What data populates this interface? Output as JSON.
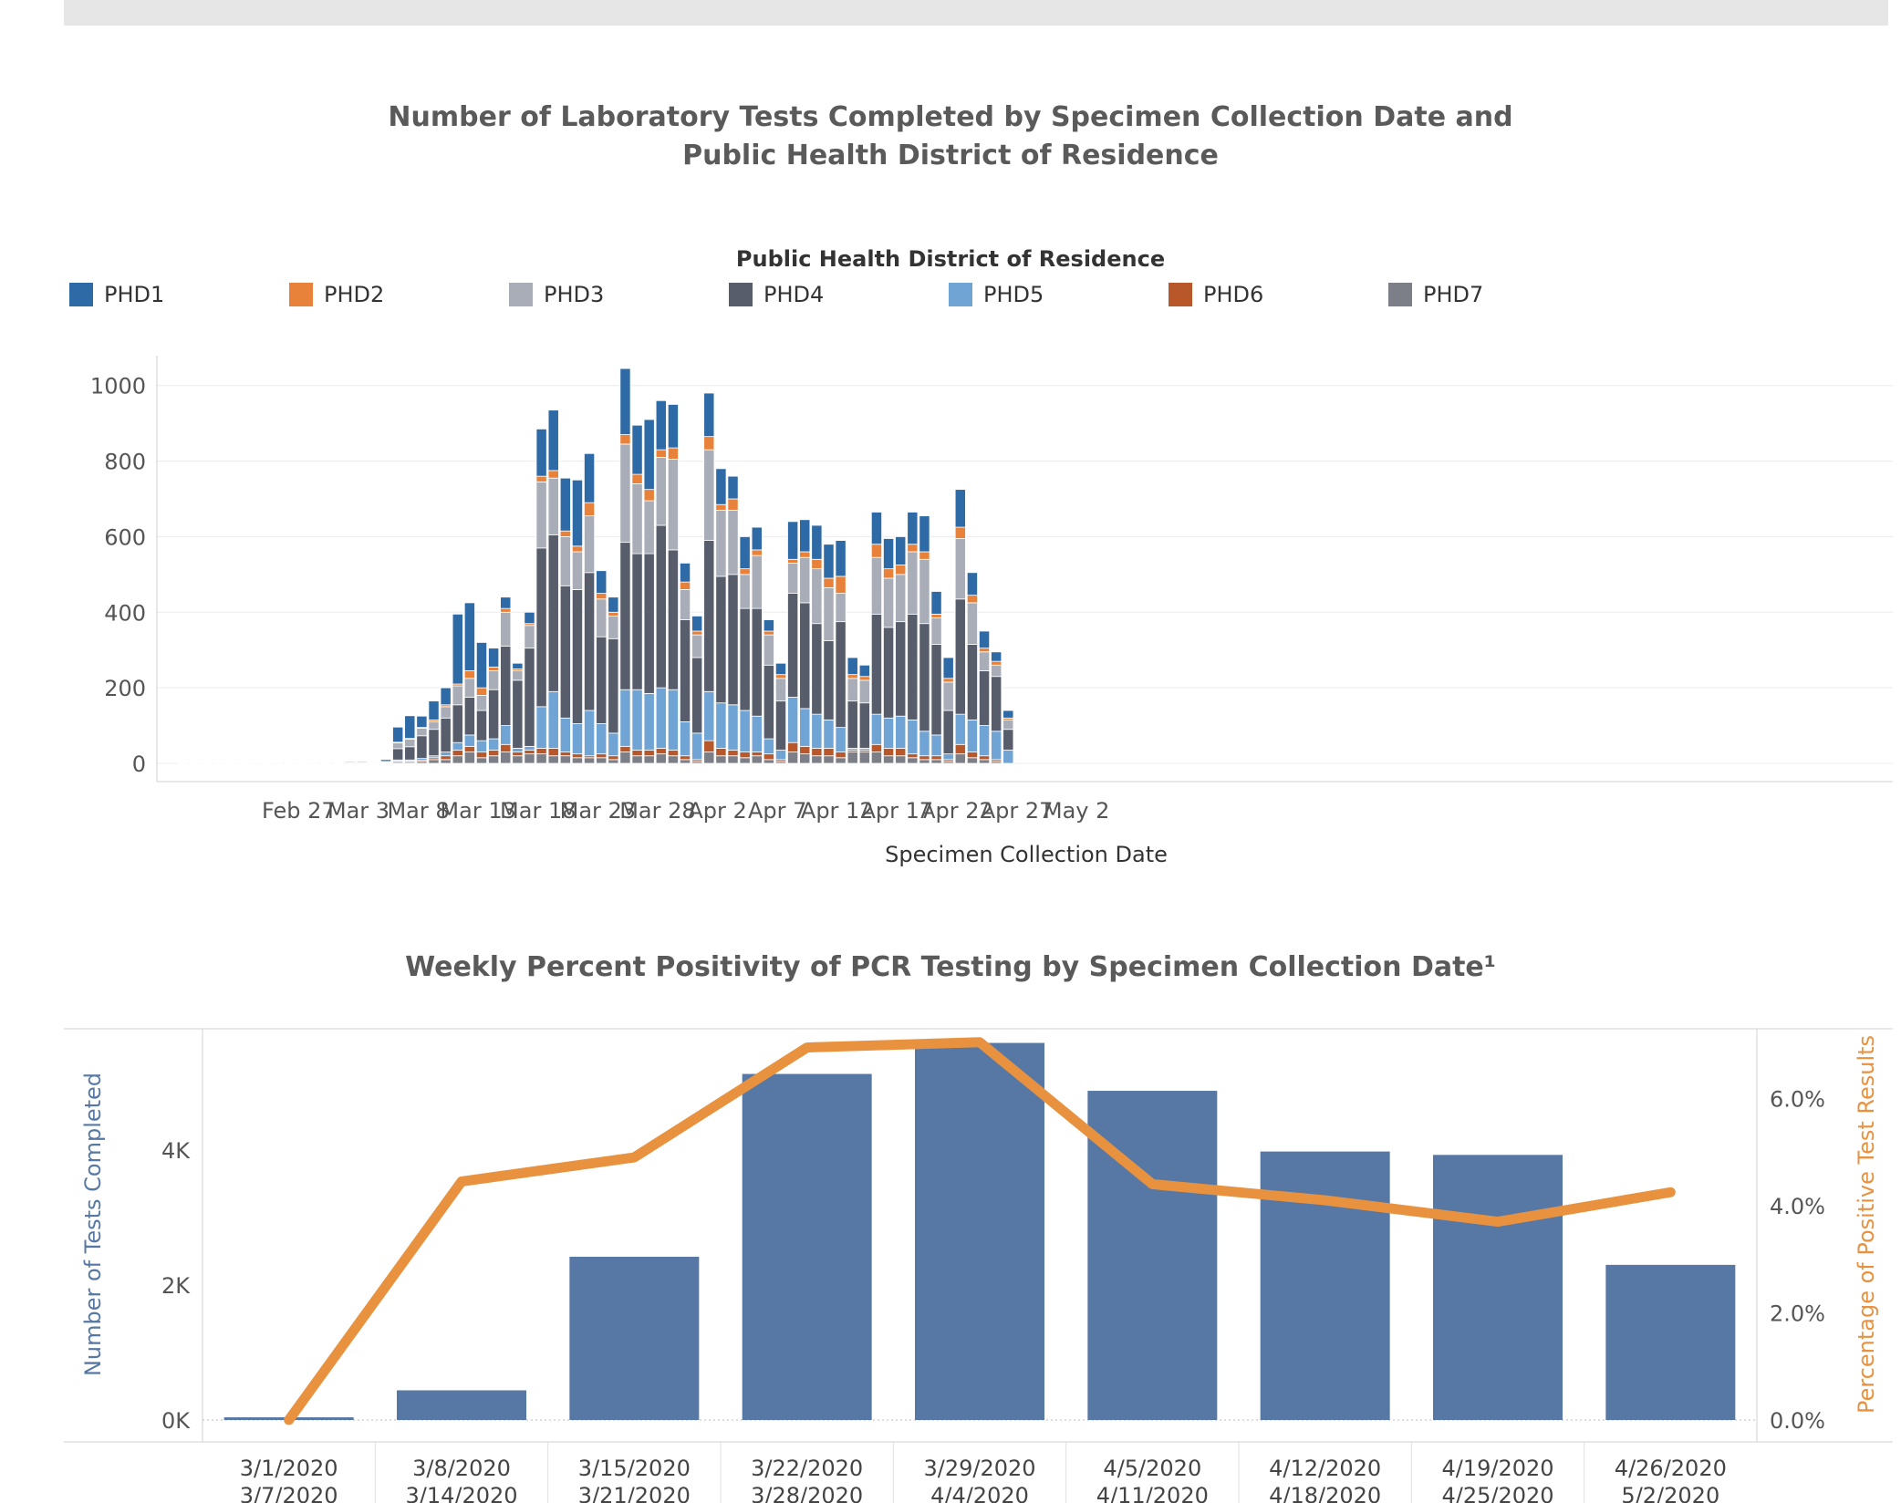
{
  "title1": "Number of Laboratory Tests Completed by Specimen Collection Date and Public Health District of Residence",
  "title2": "Weekly Percent Positivity of PCR Testing by Specimen Collection Date¹",
  "legend_title": "Public Health District of Residence",
  "chart_data": [
    {
      "type": "bar",
      "stacked": true,
      "xlabel": "Specimen Collection Date",
      "ylabel": "",
      "ylim": [
        0,
        1050
      ],
      "yticks": [
        0,
        200,
        400,
        600,
        800,
        1000
      ],
      "grid": true,
      "legend_position": "top",
      "x_ticks": [
        {
          "label": "Feb 27",
          "day": 3
        },
        {
          "label": "Mar 3",
          "day": 8
        },
        {
          "label": "Mar 8",
          "day": 13
        },
        {
          "label": "Mar 13",
          "day": 18
        },
        {
          "label": "Mar 18",
          "day": 23
        },
        {
          "label": "Mar 23",
          "day": 28
        },
        {
          "label": "Mar 28",
          "day": 33
        },
        {
          "label": "Apr 2",
          "day": 38
        },
        {
          "label": "Apr 7",
          "day": 43
        },
        {
          "label": "Apr 12",
          "day": 48
        },
        {
          "label": "Apr 17",
          "day": 53
        },
        {
          "label": "Apr 22",
          "day": 58
        },
        {
          "label": "Apr 27",
          "day": 63
        },
        {
          "label": "May 2",
          "day": 68
        }
      ],
      "series_colors": [
        "#2e6aa6",
        "#e8823a",
        "#a9adb8",
        "#575d6b",
        "#70a4d4",
        "#b8572a",
        "#7c7f88"
      ],
      "series": [
        {
          "name": "PHD1",
          "values": []
        },
        {
          "name": "PHD2",
          "values": []
        },
        {
          "name": "PHD3",
          "values": []
        },
        {
          "name": "PHD4",
          "values": []
        },
        {
          "name": "PHD5",
          "values": []
        },
        {
          "name": "PHD6",
          "values": []
        },
        {
          "name": "PHD7",
          "values": []
        }
      ],
      "days": [
        {
          "day": 0,
          "v": [
            0,
            0,
            0,
            1,
            0,
            0,
            0
          ]
        },
        {
          "day": 1,
          "v": [
            0,
            0,
            0,
            1,
            0,
            0,
            0
          ]
        },
        {
          "day": 2,
          "v": [
            0,
            0,
            0,
            1,
            0,
            0,
            0
          ]
        },
        {
          "day": 3,
          "v": [
            0,
            0,
            0,
            1,
            0,
            0,
            0
          ]
        },
        {
          "day": 4,
          "v": [
            0,
            0,
            0,
            1,
            0,
            0,
            0
          ]
        },
        {
          "day": 5,
          "v": [
            0,
            0,
            0,
            1,
            0,
            0,
            0
          ]
        },
        {
          "day": 6,
          "v": [
            0,
            0,
            0,
            1,
            0,
            0,
            0
          ]
        },
        {
          "day": 7,
          "v": [
            0,
            0,
            1,
            1,
            0,
            0,
            1
          ]
        },
        {
          "day": 8,
          "v": [
            0,
            0,
            1,
            1,
            0,
            0,
            1
          ]
        },
        {
          "day": 9,
          "v": [
            0,
            0,
            1,
            1,
            0,
            0,
            1
          ]
        },
        {
          "day": 10,
          "v": [
            0,
            0,
            1,
            1,
            0,
            0,
            1
          ]
        },
        {
          "day": 11,
          "v": [
            0,
            0,
            1,
            1,
            0,
            0,
            1
          ]
        },
        {
          "day": 12,
          "v": [
            0,
            0,
            1,
            1,
            0,
            0,
            1
          ]
        },
        {
          "day": 13,
          "v": [
            0,
            0,
            1,
            1,
            0,
            0,
            1
          ]
        },
        {
          "day": 14,
          "v": [
            1,
            0,
            3,
            1,
            0,
            0,
            2
          ]
        },
        {
          "day": 15,
          "v": [
            2,
            0,
            3,
            1,
            0,
            0,
            2
          ]
        },
        {
          "day": 16,
          "v": [
            2,
            0,
            2,
            1,
            0,
            0,
            1
          ]
        },
        {
          "day": 17,
          "v": [
            5,
            0,
            2,
            2,
            0,
            0,
            1
          ]
        },
        {
          "day": 18,
          "v": [
            40,
            2,
            15,
            30,
            3,
            3,
            3
          ]
        },
        {
          "day": 19,
          "v": [
            60,
            2,
            20,
            35,
            3,
            3,
            3
          ]
        },
        {
          "day": 20,
          "v": [
            30,
            2,
            20,
            60,
            5,
            3,
            5
          ]
        },
        {
          "day": 21,
          "v": [
            50,
            5,
            20,
            70,
            5,
            5,
            10
          ]
        },
        {
          "day": 22,
          "v": [
            45,
            5,
            30,
            90,
            10,
            10,
            10
          ]
        },
        {
          "day": 23,
          "v": [
            185,
            5,
            50,
            100,
            20,
            15,
            20
          ]
        },
        {
          "day": 24,
          "v": [
            180,
            20,
            50,
            100,
            30,
            15,
            30
          ]
        },
        {
          "day": 25,
          "v": [
            120,
            20,
            40,
            80,
            30,
            15,
            15
          ]
        },
        {
          "day": 26,
          "v": [
            50,
            10,
            50,
            130,
            30,
            15,
            20
          ]
        },
        {
          "day": 27,
          "v": [
            30,
            10,
            90,
            210,
            50,
            20,
            30
          ]
        },
        {
          "day": 28,
          "v": [
            15,
            5,
            25,
            180,
            10,
            10,
            20
          ]
        },
        {
          "day": 29,
          "v": [
            30,
            5,
            60,
            260,
            10,
            10,
            25
          ]
        },
        {
          "day": 30,
          "v": [
            125,
            15,
            175,
            420,
            110,
            15,
            25
          ]
        },
        {
          "day": 31,
          "v": [
            160,
            20,
            150,
            415,
            150,
            20,
            20
          ]
        },
        {
          "day": 32,
          "v": [
            140,
            15,
            130,
            350,
            90,
            10,
            20
          ]
        },
        {
          "day": 33,
          "v": [
            175,
            15,
            100,
            355,
            80,
            10,
            15
          ]
        },
        {
          "day": 34,
          "v": [
            130,
            35,
            150,
            365,
            120,
            5,
            15
          ]
        },
        {
          "day": 35,
          "v": [
            60,
            15,
            100,
            230,
            80,
            10,
            15
          ]
        },
        {
          "day": 36,
          "v": [
            40,
            10,
            60,
            250,
            60,
            10,
            10
          ]
        },
        {
          "day": 37,
          "v": [
            175,
            25,
            260,
            390,
            150,
            15,
            30
          ]
        },
        {
          "day": 38,
          "v": [
            130,
            25,
            185,
            360,
            160,
            15,
            20
          ]
        },
        {
          "day": 39,
          "v": [
            185,
            30,
            140,
            370,
            150,
            15,
            20
          ]
        },
        {
          "day": 40,
          "v": [
            130,
            20,
            180,
            430,
            160,
            15,
            25
          ]
        },
        {
          "day": 41,
          "v": [
            115,
            30,
            240,
            370,
            160,
            15,
            20
          ]
        },
        {
          "day": 42,
          "v": [
            50,
            20,
            80,
            270,
            90,
            10,
            10
          ]
        },
        {
          "day": 43,
          "v": [
            40,
            10,
            60,
            200,
            70,
            5,
            5
          ]
        },
        {
          "day": 44,
          "v": [
            115,
            35,
            240,
            400,
            130,
            30,
            30
          ]
        },
        {
          "day": 45,
          "v": [
            95,
            15,
            175,
            335,
            120,
            20,
            20
          ]
        },
        {
          "day": 46,
          "v": [
            60,
            30,
            170,
            345,
            120,
            15,
            20
          ]
        },
        {
          "day": 47,
          "v": [
            85,
            15,
            90,
            270,
            110,
            15,
            15
          ]
        },
        {
          "day": 48,
          "v": [
            60,
            15,
            140,
            285,
            95,
            10,
            20
          ]
        },
        {
          "day": 49,
          "v": [
            30,
            10,
            80,
            195,
            40,
            15,
            10
          ]
        },
        {
          "day": 50,
          "v": [
            30,
            10,
            60,
            130,
            25,
            5,
            5
          ]
        },
        {
          "day": 51,
          "v": [
            100,
            10,
            80,
            275,
            120,
            25,
            30
          ]
        },
        {
          "day": 52,
          "v": [
            85,
            15,
            120,
            280,
            100,
            20,
            25
          ]
        },
        {
          "day": 53,
          "v": [
            90,
            25,
            145,
            240,
            90,
            20,
            20
          ]
        },
        {
          "day": 54,
          "v": [
            90,
            25,
            140,
            210,
            75,
            20,
            20
          ]
        },
        {
          "day": 55,
          "v": [
            95,
            45,
            75,
            280,
            65,
            15,
            15
          ]
        },
        {
          "day": 56,
          "v": [
            45,
            10,
            60,
            125,
            5,
            5,
            30
          ]
        },
        {
          "day": 57,
          "v": [
            30,
            10,
            60,
            120,
            5,
            5,
            30
          ]
        },
        {
          "day": 58,
          "v": [
            85,
            35,
            150,
            265,
            80,
            20,
            30
          ]
        },
        {
          "day": 59,
          "v": [
            80,
            25,
            130,
            240,
            80,
            20,
            20
          ]
        },
        {
          "day": 60,
          "v": [
            75,
            25,
            125,
            250,
            85,
            20,
            20
          ]
        },
        {
          "day": 61,
          "v": [
            85,
            20,
            165,
            280,
            90,
            10,
            15
          ]
        },
        {
          "day": 62,
          "v": [
            95,
            20,
            170,
            285,
            65,
            10,
            10
          ]
        },
        {
          "day": 63,
          "v": [
            60,
            10,
            70,
            240,
            55,
            10,
            10
          ]
        },
        {
          "day": 64,
          "v": [
            55,
            10,
            75,
            115,
            15,
            5,
            5
          ]
        },
        {
          "day": 65,
          "v": [
            100,
            30,
            160,
            305,
            80,
            25,
            25
          ]
        },
        {
          "day": 66,
          "v": [
            60,
            20,
            110,
            200,
            85,
            15,
            15
          ]
        },
        {
          "day": 67,
          "v": [
            45,
            10,
            50,
            145,
            80,
            10,
            10
          ]
        },
        {
          "day": 68,
          "v": [
            25,
            10,
            30,
            145,
            75,
            5,
            5
          ]
        },
        {
          "day": 69,
          "v": [
            20,
            5,
            25,
            55,
            35,
            0,
            0
          ]
        }
      ]
    },
    {
      "type": "bar+line",
      "ylabel": "Number of Tests Completed",
      "ylabel_right": "Percentage of Positive Test Results",
      "ylim": [
        0,
        5800
      ],
      "yticks": [
        "0K",
        "2K",
        "4K"
      ],
      "ytick_values": [
        0,
        2000,
        4000
      ],
      "ylim_right": [
        0,
        7.3
      ],
      "yticks_right": [
        "0.0%",
        "2.0%",
        "4.0%",
        "6.0%"
      ],
      "ytick_right_values": [
        0,
        2,
        4,
        6
      ],
      "bar_color": "#5778a4",
      "line_color": "#e8923f",
      "categories": [
        [
          "3/1/2020",
          "3/7/2020"
        ],
        [
          "3/8/2020",
          "3/14/2020"
        ],
        [
          "3/15/2020",
          "3/21/2020"
        ],
        [
          "3/22/2020",
          "3/28/2020"
        ],
        [
          "3/29/2020",
          "4/4/2020"
        ],
        [
          "4/5/2020",
          "4/11/2020"
        ],
        [
          "4/12/2020",
          "4/18/2020"
        ],
        [
          "4/19/2020",
          "4/25/2020"
        ],
        [
          "4/26/2020",
          "5/2/2020"
        ]
      ],
      "series": [
        {
          "name": "Number of Tests Completed",
          "values": [
            40,
            440,
            2420,
            5130,
            5590,
            4880,
            3980,
            3930,
            2300
          ]
        },
        {
          "name": "Percentage of Positive Test Results",
          "values": [
            0.0,
            4.45,
            4.9,
            6.95,
            7.05,
            4.4,
            4.1,
            3.7,
            4.25
          ]
        }
      ]
    }
  ]
}
